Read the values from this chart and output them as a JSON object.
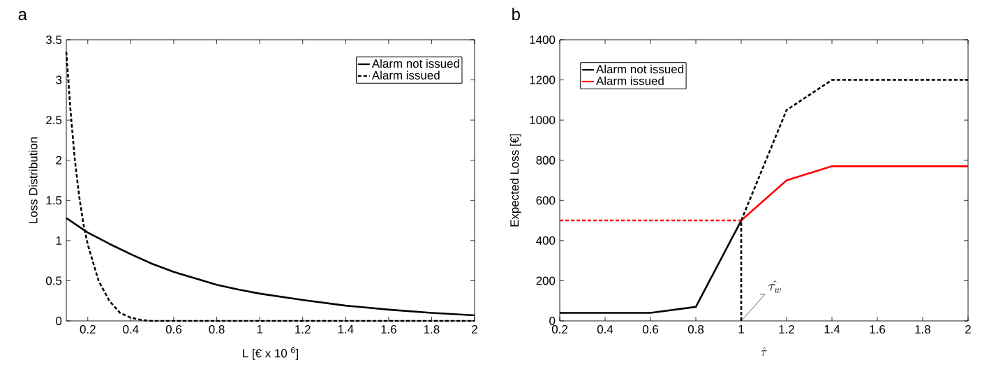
{
  "chart_data": [
    {
      "type": "line",
      "title": "a",
      "xlabel": "L [€ x 10 $^{6}$]",
      "ylabel": "Loss Distribution",
      "xlim": [
        0.1,
        2
      ],
      "ylim": [
        0,
        3.5
      ],
      "xticks": [
        0.2,
        0.4,
        0.6,
        0.8,
        1,
        1.2,
        1.4,
        1.6,
        1.8,
        2
      ],
      "yticks": [
        0,
        0.5,
        1,
        1.5,
        2,
        2.5,
        3,
        3.5
      ],
      "legend": "top right",
      "series": [
        {
          "name": "Alarm not issued",
          "color": "#000000",
          "line_style": "solid",
          "x": [
            0.1,
            0.2,
            0.3,
            0.4,
            0.5,
            0.6,
            0.7,
            0.8,
            0.9,
            1.0,
            1.2,
            1.4,
            1.6,
            1.8,
            2.0
          ],
          "values": [
            1.28,
            1.1,
            0.96,
            0.83,
            0.71,
            0.61,
            0.53,
            0.45,
            0.39,
            0.34,
            0.26,
            0.19,
            0.14,
            0.1,
            0.07
          ]
        },
        {
          "name": "Alarm issued",
          "color": "#000000",
          "line_style": "dashed",
          "x": [
            0.1,
            0.12,
            0.14,
            0.16,
            0.18,
            0.2,
            0.25,
            0.3,
            0.35,
            0.4,
            0.45,
            0.5,
            1.0,
            2.0
          ],
          "values": [
            3.35,
            2.6,
            2.0,
            1.55,
            1.2,
            0.95,
            0.5,
            0.25,
            0.1,
            0.04,
            0.01,
            0,
            0,
            0
          ]
        }
      ]
    },
    {
      "type": "line",
      "title": "b",
      "xlabel": "\\hat{\\tau}",
      "ylabel": "Expected Loss [€]",
      "xlim": [
        0.2,
        2
      ],
      "ylim": [
        0,
        1400
      ],
      "xticks": [
        0.2,
        0.4,
        0.6,
        0.8,
        1,
        1.2,
        1.4,
        1.6,
        1.8,
        2
      ],
      "yticks": [
        0,
        200,
        400,
        600,
        800,
        1000,
        1200,
        1400
      ],
      "legend": "top left",
      "annotations": [
        {
          "text": "\\hat{\\tau_w}",
          "x": 1,
          "y": 0
        }
      ],
      "series": [
        {
          "name": "Alarm not issued",
          "color": "#000000",
          "line_style": "solid",
          "x": [
            0.2,
            0.6,
            0.8,
            1
          ],
          "values": [
            40,
            40,
            70,
            500
          ]
        },
        {
          "name": "Alarm issued",
          "color": "#ff0000",
          "line_style": "solid",
          "x": [
            1,
            1.2,
            1.4,
            2
          ],
          "values": [
            500,
            700,
            770,
            770
          ]
        },
        {
          "color": "#000000",
          "line_style": "dashed",
          "x": [
            1,
            1,
            1.2,
            1.4,
            2
          ],
          "values": [
            0,
            500,
            1050,
            1200,
            1200
          ]
        },
        {
          "color": "#ff0000",
          "line_style": "dashed",
          "x": [
            0.2,
            1
          ],
          "values": [
            500,
            500
          ]
        }
      ]
    }
  ]
}
